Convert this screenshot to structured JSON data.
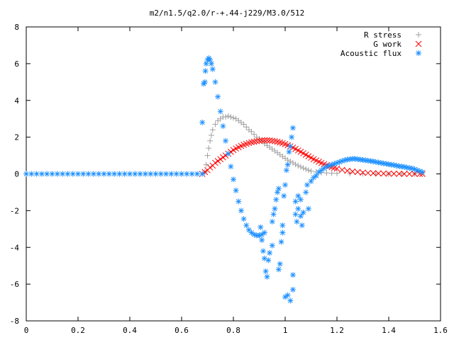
{
  "chart_data": {
    "type": "scatter",
    "title": "m2/n1.5/q2.0/r-+.44-j229/M3.0/512",
    "xlabel": "",
    "ylabel": "",
    "xlim": [
      0,
      1.6
    ],
    "ylim": [
      -8,
      8
    ],
    "x_ticks": [
      0,
      0.2,
      0.4,
      0.6,
      0.8,
      1,
      1.2,
      1.4,
      1.6
    ],
    "x_tick_labels": [
      "0",
      "0.2",
      "0.4",
      "0.6",
      "0.8",
      "1",
      "1.2",
      "1.4",
      "1.6"
    ],
    "y_ticks": [
      -8,
      -6,
      -4,
      -2,
      0,
      2,
      4,
      6,
      8
    ],
    "y_tick_labels": [
      "-8",
      "-6",
      "-4",
      "-2",
      "0",
      "2",
      "4",
      "6",
      "8"
    ],
    "grid": false,
    "legend_position": "top-right",
    "series": [
      {
        "name": "R stress",
        "marker": "plus",
        "color": "#a0a0a0",
        "points": [
          [
            0.69,
            0.1
          ],
          [
            0.695,
            0.5
          ],
          [
            0.7,
            1.0
          ],
          [
            0.705,
            1.4
          ],
          [
            0.71,
            1.8
          ],
          [
            0.715,
            2.1
          ],
          [
            0.72,
            2.4
          ],
          [
            0.73,
            2.7
          ],
          [
            0.74,
            2.9
          ],
          [
            0.75,
            3.0
          ],
          [
            0.76,
            3.1
          ],
          [
            0.77,
            3.1
          ],
          [
            0.78,
            3.15
          ],
          [
            0.79,
            3.1
          ],
          [
            0.8,
            3.05
          ],
          [
            0.81,
            3.0
          ],
          [
            0.82,
            2.9
          ],
          [
            0.83,
            2.8
          ],
          [
            0.84,
            2.7
          ],
          [
            0.85,
            2.55
          ],
          [
            0.86,
            2.4
          ],
          [
            0.87,
            2.3
          ],
          [
            0.88,
            2.15
          ],
          [
            0.89,
            2.0
          ],
          [
            0.9,
            1.9
          ],
          [
            0.91,
            1.8
          ],
          [
            0.92,
            1.65
          ],
          [
            0.93,
            1.55
          ],
          [
            0.94,
            1.45
          ],
          [
            0.95,
            1.35
          ],
          [
            0.96,
            1.25
          ],
          [
            0.97,
            1.15
          ],
          [
            0.98,
            1.05
          ],
          [
            0.99,
            0.95
          ],
          [
            1.0,
            0.85
          ],
          [
            1.01,
            0.75
          ],
          [
            1.02,
            0.68
          ],
          [
            1.03,
            0.6
          ],
          [
            1.04,
            0.52
          ],
          [
            1.05,
            0.45
          ],
          [
            1.06,
            0.38
          ],
          [
            1.07,
            0.32
          ],
          [
            1.08,
            0.26
          ],
          [
            1.09,
            0.2
          ],
          [
            1.1,
            0.15
          ],
          [
            1.12,
            0.1
          ],
          [
            1.14,
            0.07
          ],
          [
            1.16,
            0.05
          ],
          [
            1.18,
            0.04
          ],
          [
            1.2,
            0.03
          ],
          [
            1.25,
            0.02
          ],
          [
            1.3,
            0.01
          ],
          [
            1.35,
            0.005
          ],
          [
            1.4,
            0.0
          ],
          [
            1.45,
            0.0
          ],
          [
            1.5,
            0.0
          ]
        ]
      },
      {
        "name": "G work",
        "marker": "cross",
        "color": "#ff0000",
        "points": [
          [
            0.68,
            0.0
          ],
          [
            0.69,
            0.1
          ],
          [
            0.7,
            0.2
          ],
          [
            0.71,
            0.35
          ],
          [
            0.72,
            0.45
          ],
          [
            0.73,
            0.6
          ],
          [
            0.74,
            0.7
          ],
          [
            0.75,
            0.8
          ],
          [
            0.76,
            0.9
          ],
          [
            0.77,
            1.0
          ],
          [
            0.78,
            1.1
          ],
          [
            0.79,
            1.2
          ],
          [
            0.8,
            1.3
          ],
          [
            0.81,
            1.38
          ],
          [
            0.82,
            1.45
          ],
          [
            0.83,
            1.52
          ],
          [
            0.84,
            1.58
          ],
          [
            0.85,
            1.63
          ],
          [
            0.86,
            1.68
          ],
          [
            0.87,
            1.72
          ],
          [
            0.88,
            1.75
          ],
          [
            0.89,
            1.78
          ],
          [
            0.9,
            1.8
          ],
          [
            0.91,
            1.82
          ],
          [
            0.92,
            1.83
          ],
          [
            0.93,
            1.83
          ],
          [
            0.94,
            1.82
          ],
          [
            0.95,
            1.8
          ],
          [
            0.96,
            1.78
          ],
          [
            0.97,
            1.75
          ],
          [
            0.98,
            1.71
          ],
          [
            0.99,
            1.67
          ],
          [
            1.0,
            1.62
          ],
          [
            1.01,
            1.56
          ],
          [
            1.02,
            1.5
          ],
          [
            1.03,
            1.43
          ],
          [
            1.04,
            1.36
          ],
          [
            1.05,
            1.28
          ],
          [
            1.06,
            1.2
          ],
          [
            1.07,
            1.12
          ],
          [
            1.08,
            1.04
          ],
          [
            1.09,
            0.96
          ],
          [
            1.1,
            0.88
          ],
          [
            1.11,
            0.8
          ],
          [
            1.12,
            0.73
          ],
          [
            1.13,
            0.66
          ],
          [
            1.14,
            0.59
          ],
          [
            1.15,
            0.53
          ],
          [
            1.16,
            0.47
          ],
          [
            1.17,
            0.42
          ],
          [
            1.18,
            0.37
          ],
          [
            1.19,
            0.33
          ],
          [
            1.2,
            0.29
          ],
          [
            1.22,
            0.22
          ],
          [
            1.24,
            0.17
          ],
          [
            1.26,
            0.13
          ],
          [
            1.28,
            0.1
          ],
          [
            1.3,
            0.07
          ],
          [
            1.32,
            0.05
          ],
          [
            1.34,
            0.04
          ],
          [
            1.36,
            0.03
          ],
          [
            1.38,
            0.02
          ],
          [
            1.4,
            0.015
          ],
          [
            1.42,
            0.01
          ],
          [
            1.44,
            0.005
          ],
          [
            1.46,
            0.0
          ],
          [
            1.48,
            0.0
          ],
          [
            1.5,
            0.0
          ],
          [
            1.52,
            0.0
          ],
          [
            1.53,
            0.0
          ]
        ]
      },
      {
        "name": "Acoustic flux",
        "marker": "star",
        "color": "#1e90ff",
        "points": [
          [
            0.0,
            0.0
          ],
          [
            0.02,
            0.0
          ],
          [
            0.04,
            0.0
          ],
          [
            0.06,
            0.0
          ],
          [
            0.08,
            0.0
          ],
          [
            0.1,
            0.0
          ],
          [
            0.12,
            0.0
          ],
          [
            0.14,
            0.0
          ],
          [
            0.16,
            0.0
          ],
          [
            0.18,
            0.0
          ],
          [
            0.2,
            0.0
          ],
          [
            0.22,
            0.0
          ],
          [
            0.24,
            0.0
          ],
          [
            0.26,
            0.0
          ],
          [
            0.28,
            0.0
          ],
          [
            0.3,
            0.0
          ],
          [
            0.32,
            0.0
          ],
          [
            0.34,
            0.0
          ],
          [
            0.36,
            0.0
          ],
          [
            0.38,
            0.0
          ],
          [
            0.4,
            0.0
          ],
          [
            0.42,
            0.0
          ],
          [
            0.44,
            0.0
          ],
          [
            0.46,
            0.0
          ],
          [
            0.48,
            0.0
          ],
          [
            0.5,
            0.0
          ],
          [
            0.52,
            0.0
          ],
          [
            0.54,
            0.0
          ],
          [
            0.56,
            0.0
          ],
          [
            0.58,
            0.0
          ],
          [
            0.6,
            0.0
          ],
          [
            0.62,
            0.0
          ],
          [
            0.64,
            0.0
          ],
          [
            0.66,
            0.0
          ],
          [
            0.68,
            0.0
          ],
          [
            0.68,
            2.8
          ],
          [
            0.685,
            4.9
          ],
          [
            0.69,
            5.0
          ],
          [
            0.692,
            5.6
          ],
          [
            0.695,
            6.0
          ],
          [
            0.7,
            6.2
          ],
          [
            0.705,
            6.3
          ],
          [
            0.71,
            6.2
          ],
          [
            0.715,
            6.0
          ],
          [
            0.72,
            5.7
          ],
          [
            0.73,
            5.0
          ],
          [
            0.74,
            4.2
          ],
          [
            0.75,
            3.4
          ],
          [
            0.76,
            2.6
          ],
          [
            0.77,
            1.8
          ],
          [
            0.78,
            1.1
          ],
          [
            0.79,
            0.4
          ],
          [
            0.8,
            -0.3
          ],
          [
            0.81,
            -0.9
          ],
          [
            0.82,
            -1.5
          ],
          [
            0.83,
            -2.0
          ],
          [
            0.84,
            -2.45
          ],
          [
            0.85,
            -2.8
          ],
          [
            0.86,
            -3.05
          ],
          [
            0.87,
            -3.2
          ],
          [
            0.88,
            -3.3
          ],
          [
            0.89,
            -3.35
          ],
          [
            0.9,
            -3.35
          ],
          [
            0.91,
            -3.3
          ],
          [
            0.92,
            -3.2
          ],
          [
            0.905,
            -2.9
          ],
          [
            0.91,
            -3.6
          ],
          [
            0.915,
            -4.2
          ],
          [
            0.92,
            -4.6
          ],
          [
            0.925,
            -5.3
          ],
          [
            0.93,
            -5.6
          ],
          [
            0.935,
            -4.7
          ],
          [
            0.94,
            -4.3
          ],
          [
            0.95,
            -3.9
          ],
          [
            0.95,
            -2.6
          ],
          [
            0.955,
            -2.2
          ],
          [
            0.96,
            -1.9
          ],
          [
            0.965,
            -1.4
          ],
          [
            0.97,
            -1.0
          ],
          [
            0.975,
            -0.8
          ],
          [
            0.975,
            -5.2
          ],
          [
            0.98,
            -4.9
          ],
          [
            0.985,
            -3.7
          ],
          [
            0.99,
            -3.2
          ],
          [
            0.99,
            -2.8
          ],
          [
            0.995,
            -1.2
          ],
          [
            1.0,
            -0.6
          ],
          [
            1.0,
            -6.7
          ],
          [
            1.005,
            0.2
          ],
          [
            1.01,
            0.5
          ],
          [
            1.01,
            -6.6
          ],
          [
            1.015,
            1.2
          ],
          [
            1.02,
            1.5
          ],
          [
            1.02,
            -6.9
          ],
          [
            1.025,
            2.0
          ],
          [
            1.03,
            2.5
          ],
          [
            1.03,
            -6.3
          ],
          [
            1.03,
            -5.5
          ],
          [
            1.04,
            -1.5
          ],
          [
            1.04,
            -2.2
          ],
          [
            1.045,
            -2.6
          ],
          [
            1.05,
            -1.9
          ],
          [
            1.05,
            -1.2
          ],
          [
            1.06,
            -1.4
          ],
          [
            1.06,
            -2.3
          ],
          [
            1.065,
            -2.8
          ],
          [
            1.07,
            -2.1
          ],
          [
            1.08,
            -1.0
          ],
          [
            1.085,
            -0.6
          ],
          [
            1.09,
            -1.9
          ],
          [
            1.1,
            -0.4
          ],
          [
            1.11,
            -0.2
          ],
          [
            1.12,
            -0.1
          ],
          [
            1.13,
            0.1
          ],
          [
            1.14,
            0.2
          ],
          [
            1.15,
            0.3
          ],
          [
            1.16,
            0.4
          ],
          [
            1.17,
            0.45
          ],
          [
            1.18,
            0.5
          ],
          [
            1.19,
            0.55
          ],
          [
            1.2,
            0.6
          ],
          [
            1.21,
            0.65
          ],
          [
            1.22,
            0.7
          ],
          [
            1.23,
            0.75
          ],
          [
            1.24,
            0.78
          ],
          [
            1.25,
            0.8
          ],
          [
            1.26,
            0.82
          ],
          [
            1.27,
            0.82
          ],
          [
            1.28,
            0.8
          ],
          [
            1.29,
            0.78
          ],
          [
            1.3,
            0.76
          ],
          [
            1.31,
            0.74
          ],
          [
            1.32,
            0.72
          ],
          [
            1.33,
            0.7
          ],
          [
            1.34,
            0.68
          ],
          [
            1.35,
            0.65
          ],
          [
            1.36,
            0.62
          ],
          [
            1.37,
            0.6
          ],
          [
            1.38,
            0.57
          ],
          [
            1.39,
            0.55
          ],
          [
            1.4,
            0.52
          ],
          [
            1.41,
            0.5
          ],
          [
            1.42,
            0.48
          ],
          [
            1.43,
            0.45
          ],
          [
            1.44,
            0.42
          ],
          [
            1.45,
            0.4
          ],
          [
            1.46,
            0.38
          ],
          [
            1.47,
            0.35
          ],
          [
            1.48,
            0.32
          ],
          [
            1.49,
            0.3
          ],
          [
            1.5,
            0.25
          ],
          [
            1.51,
            0.2
          ],
          [
            1.52,
            0.15
          ],
          [
            1.53,
            0.1
          ]
        ]
      }
    ]
  }
}
